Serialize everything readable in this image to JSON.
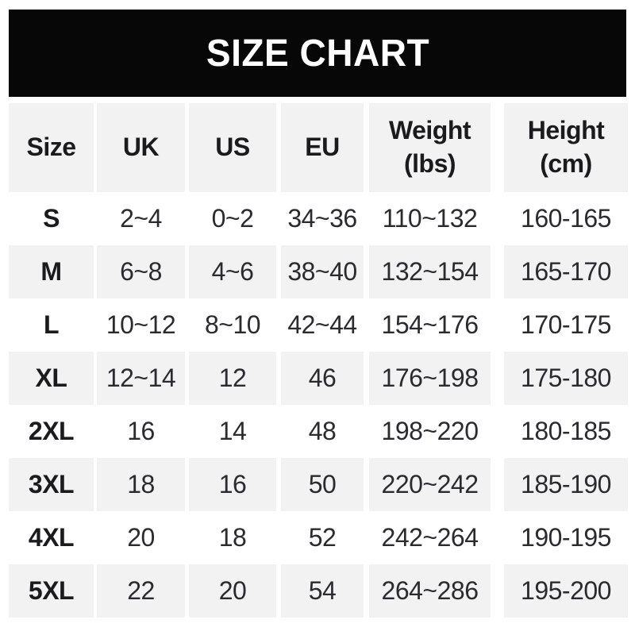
{
  "banner": {
    "title": "SIZE CHART"
  },
  "colors": {
    "banner_background": "#070707",
    "banner_text": "#ffffff",
    "row_stripe": "#f2f2f2",
    "text": "#2b2b2f",
    "bold_text": "#1b1b1d",
    "page_background": "#ffffff"
  },
  "chart_data": {
    "type": "table",
    "title": "SIZE CHART",
    "column_labels": [
      "Size",
      "UK",
      "US",
      "EU",
      "Weight\n(lbs)",
      "Height\n(cm)"
    ],
    "rows": [
      [
        "S",
        "2~4",
        "0~2",
        "34~36",
        "110~132",
        "160-165"
      ],
      [
        "M",
        "6~8",
        "4~6",
        "38~40",
        "132~154",
        "165-170"
      ],
      [
        "L",
        "10~12",
        "8~10",
        "42~44",
        "154~176",
        "170-175"
      ],
      [
        "XL",
        "12~14",
        "12",
        "46",
        "176~198",
        "175-180"
      ],
      [
        "2XL",
        "16",
        "14",
        "48",
        "198~220",
        "180-185"
      ],
      [
        "3XL",
        "18",
        "16",
        "50",
        "220~242",
        "185-190"
      ],
      [
        "4XL",
        "20",
        "18",
        "52",
        "242~264",
        "190-195"
      ],
      [
        "5XL",
        "22",
        "20",
        "54",
        "264~286",
        "195-200"
      ]
    ],
    "layout": {
      "header_stripe": true,
      "zebra_striping": "even rows white, odd rows gray (S white, M gray, ...)"
    }
  }
}
